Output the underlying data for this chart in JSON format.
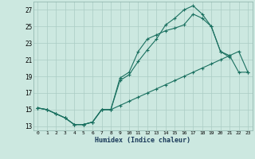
{
  "xlabel": "Humidex (Indice chaleur)",
  "bg_color": "#cce8e0",
  "grid_color": "#aaccC4",
  "line_color": "#1a7060",
  "xlim": [
    -0.5,
    23.5
  ],
  "ylim": [
    12.5,
    28.0
  ],
  "xticks": [
    0,
    1,
    2,
    3,
    4,
    5,
    6,
    7,
    8,
    9,
    10,
    11,
    12,
    13,
    14,
    15,
    16,
    17,
    18,
    19,
    20,
    21,
    22,
    23
  ],
  "yticks": [
    13,
    15,
    17,
    19,
    21,
    23,
    25,
    27
  ],
  "line1_x": [
    0,
    1,
    2,
    3,
    4,
    5,
    6,
    7,
    8,
    9,
    10,
    11,
    12,
    13,
    14,
    15,
    16,
    17,
    18,
    19,
    20,
    21
  ],
  "line1_y": [
    15.2,
    15.0,
    14.5,
    14.0,
    13.2,
    13.2,
    13.5,
    15.0,
    15.0,
    18.5,
    19.2,
    20.8,
    22.2,
    23.5,
    25.2,
    26.0,
    27.0,
    27.5,
    26.5,
    25.0,
    22.0,
    21.3
  ],
  "line2_x": [
    0,
    1,
    2,
    3,
    4,
    5,
    6,
    7,
    8,
    9,
    10,
    11,
    12,
    13,
    14,
    15,
    16,
    17,
    18,
    19,
    20,
    21,
    22,
    23
  ],
  "line2_y": [
    15.2,
    15.0,
    14.5,
    14.0,
    13.2,
    13.2,
    13.5,
    15.0,
    15.0,
    18.8,
    19.5,
    22.0,
    23.5,
    24.0,
    24.5,
    24.8,
    25.2,
    26.5,
    26.0,
    25.0,
    22.0,
    21.5,
    19.5,
    19.5
  ],
  "line3_x": [
    0,
    1,
    2,
    3,
    4,
    5,
    6,
    7,
    8,
    9,
    10,
    11,
    12,
    13,
    14,
    15,
    16,
    17,
    18,
    19,
    20,
    21,
    22,
    23
  ],
  "line3_y": [
    15.2,
    15.0,
    14.5,
    14.0,
    13.2,
    13.2,
    13.5,
    15.0,
    15.0,
    15.5,
    16.0,
    16.5,
    17.0,
    17.5,
    18.0,
    18.5,
    19.0,
    19.5,
    20.0,
    20.5,
    21.0,
    21.5,
    22.0,
    19.5
  ]
}
